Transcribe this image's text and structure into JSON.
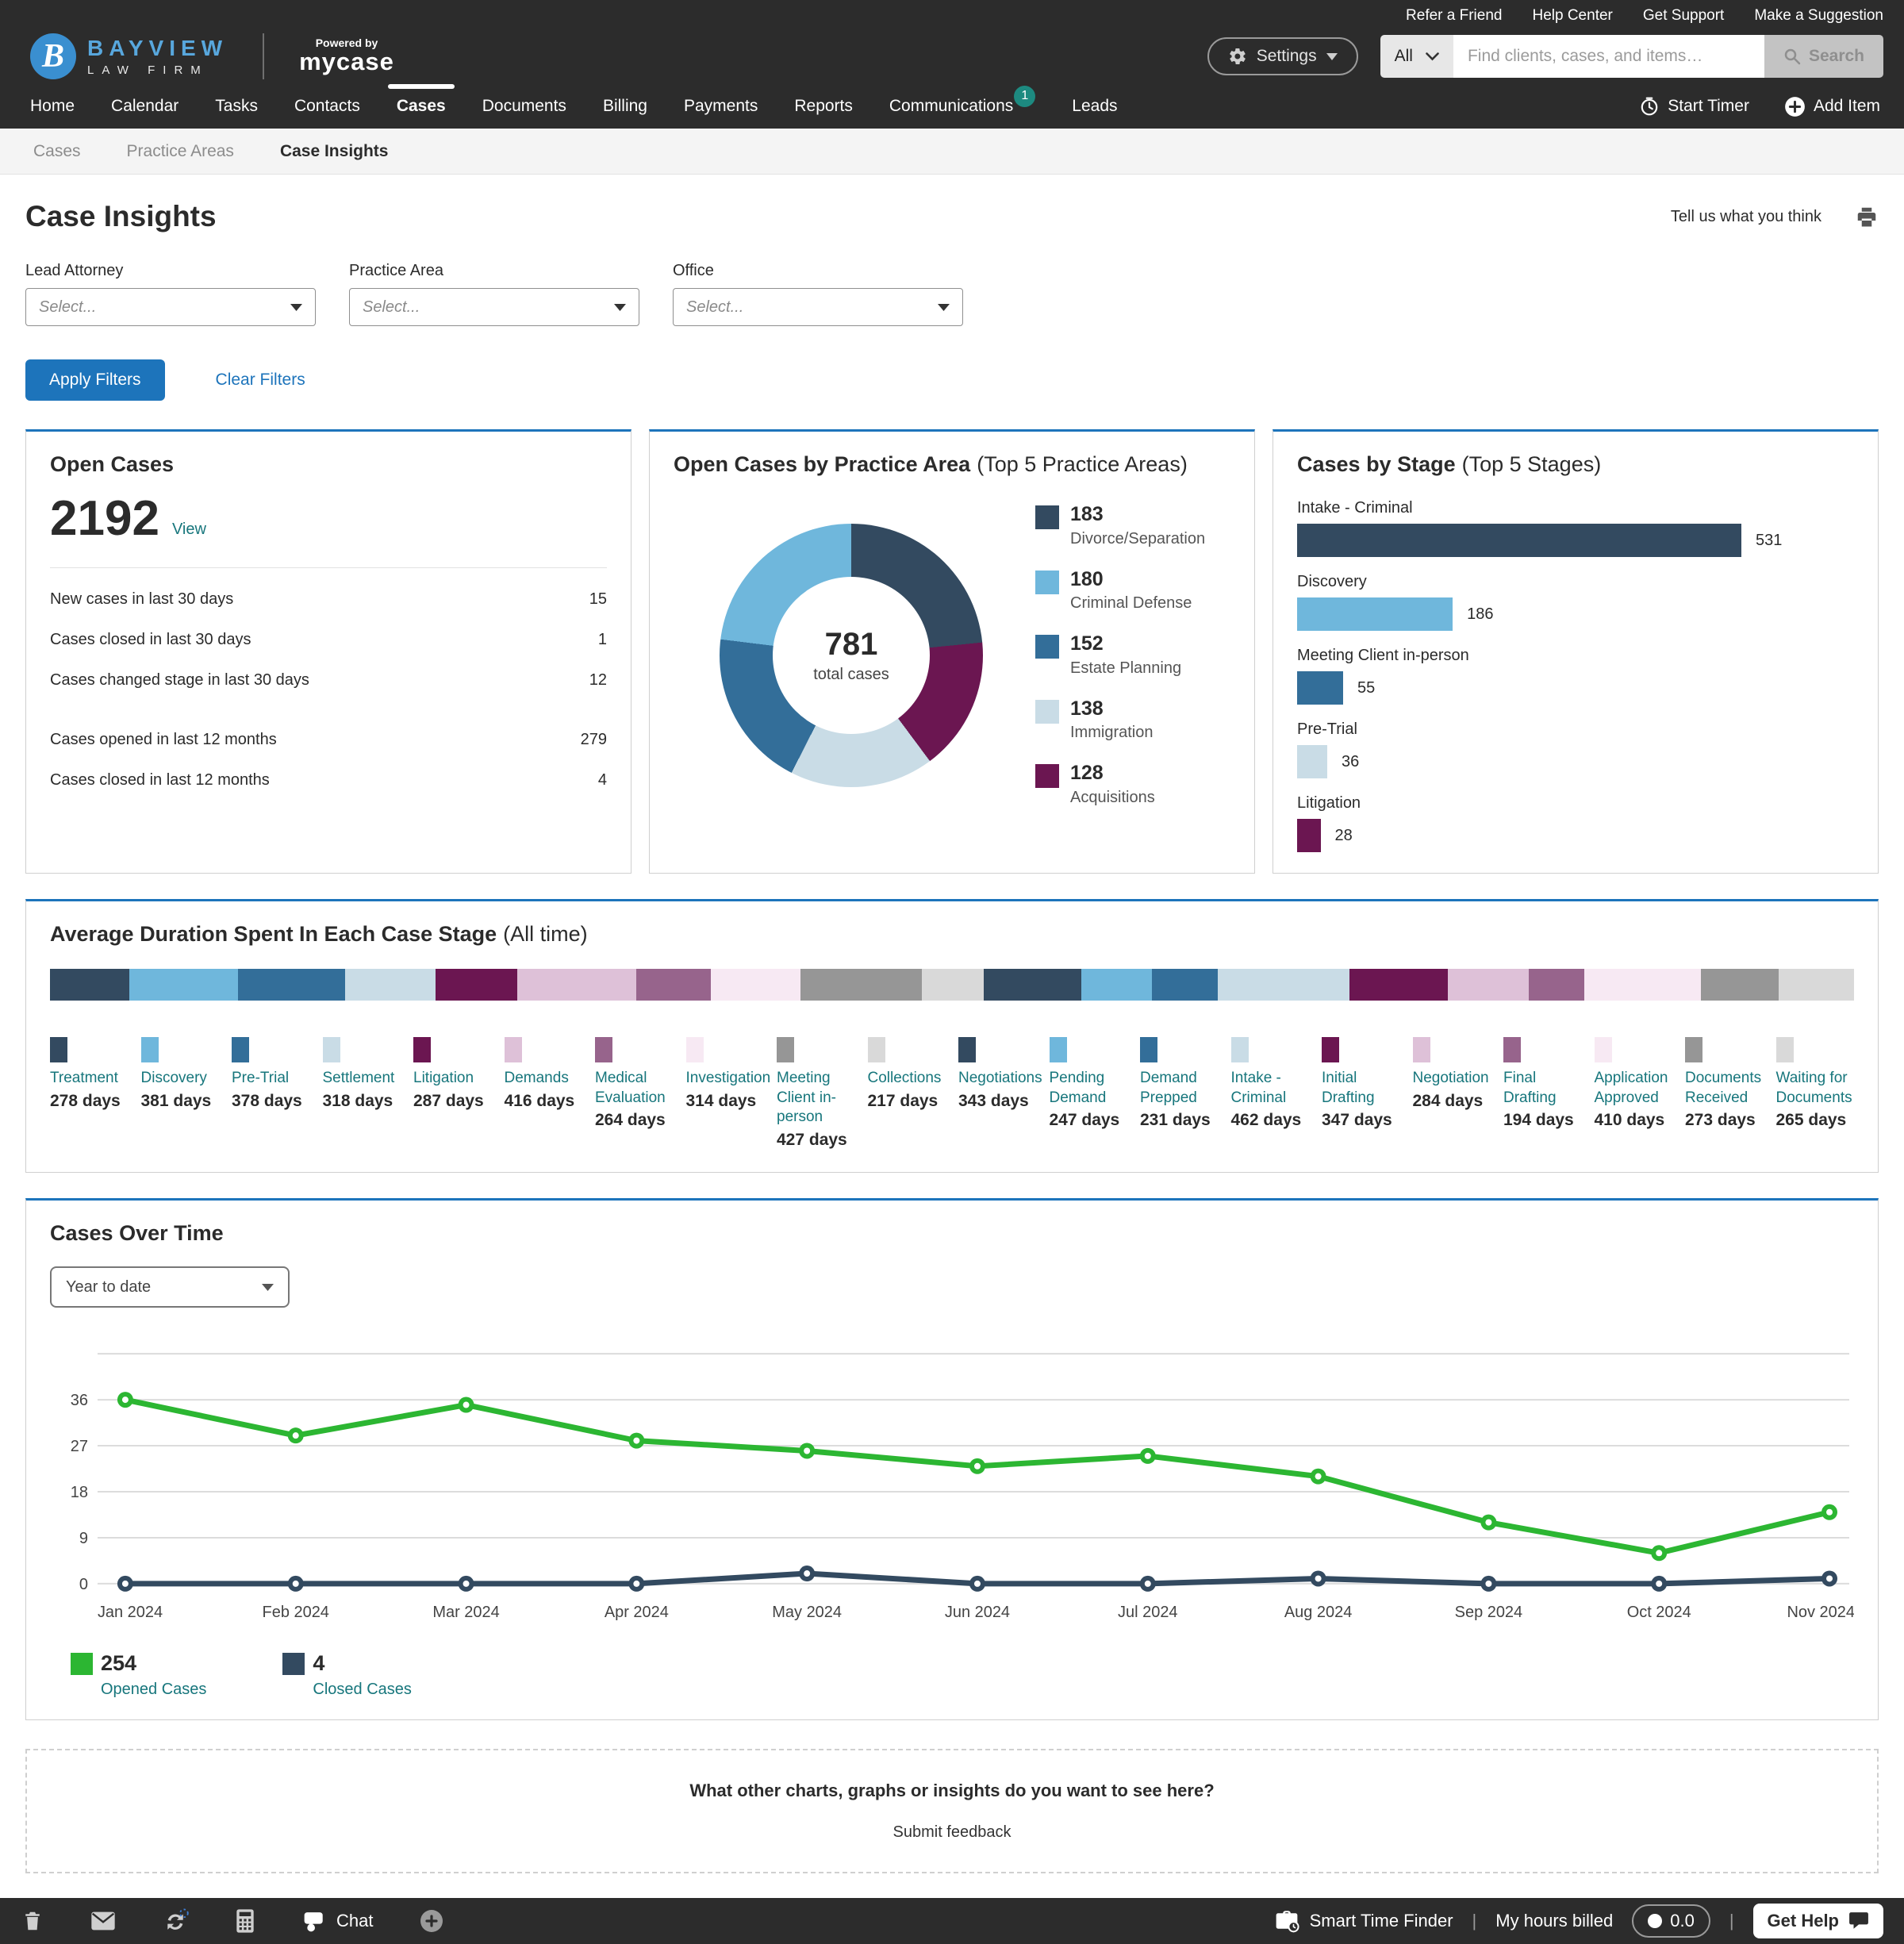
{
  "topbar": {
    "links": [
      "Refer a Friend",
      "Help Center",
      "Get Support",
      "Make a Suggestion"
    ]
  },
  "header": {
    "logo_initial": "B",
    "firm_line1": "BAYVIEW",
    "firm_line2": "LAW FIRM",
    "powered_by": "Powered by",
    "product": "mycase",
    "settings_label": "Settings",
    "search_scope": "All",
    "search_placeholder": "Find clients, cases, and items…",
    "search_button": "Search"
  },
  "nav": {
    "items": [
      "Home",
      "Calendar",
      "Tasks",
      "Contacts",
      "Cases",
      "Documents",
      "Billing",
      "Payments",
      "Reports",
      "Communications",
      "Leads"
    ],
    "active": "Cases",
    "badge_item": "Communications",
    "badge_count": "1",
    "start_timer": "Start Timer",
    "add_item": "Add Item"
  },
  "subnav": {
    "items": [
      "Cases",
      "Practice Areas",
      "Case Insights"
    ],
    "active": "Case Insights"
  },
  "page": {
    "title": "Case Insights",
    "feedback_link": "Tell us what you think"
  },
  "filters": {
    "fields": [
      {
        "label": "Lead Attorney",
        "value": "Select..."
      },
      {
        "label": "Practice Area",
        "value": "Select..."
      },
      {
        "label": "Office",
        "value": "Select..."
      }
    ],
    "apply": "Apply Filters",
    "clear": "Clear Filters"
  },
  "open_cases": {
    "title": "Open Cases",
    "count": "2192",
    "view_label": "View",
    "group_break_index": 3,
    "stats": [
      {
        "label": "New cases in last 30 days",
        "value": "15"
      },
      {
        "label": "Cases closed in last 30 days",
        "value": "1"
      },
      {
        "label": "Cases changed stage in last 30 days",
        "value": "12"
      },
      {
        "label": "Cases opened in last 12 months",
        "value": "279"
      },
      {
        "label": "Cases closed in last 12 months",
        "value": "4"
      }
    ]
  },
  "chart_data": [
    {
      "id": "open_cases_by_practice_area",
      "type": "pie",
      "title": "Open Cases by Practice Area",
      "subtitle": "(Top 5 Practice Areas)",
      "center_total": "781",
      "center_label": "total cases",
      "categories": [
        "Divorce/Separation",
        "Criminal Defense",
        "Estate Planning",
        "Immigration",
        "Acquisitions"
      ],
      "values": [
        183,
        180,
        152,
        138,
        128
      ],
      "colors": [
        "#334a60",
        "#6fb7dc",
        "#336e99",
        "#c9dce6",
        "#6b1651"
      ],
      "clockwise_draw_order": [
        0,
        4,
        3,
        2,
        1
      ],
      "legend_position": "right"
    },
    {
      "id": "cases_by_stage",
      "type": "bar",
      "orientation": "horizontal",
      "title": "Cases by Stage",
      "subtitle": "(Top 5 Stages)",
      "categories": [
        "Intake - Criminal",
        "Discovery",
        "Meeting Client in-person",
        "Pre-Trial",
        "Litigation"
      ],
      "values": [
        531,
        186,
        55,
        36,
        28
      ],
      "colors": [
        "#334a60",
        "#6fb7dc",
        "#336e99",
        "#c9dce6",
        "#6b1651"
      ],
      "xlim": [
        0,
        531
      ]
    },
    {
      "id": "avg_stage_duration",
      "type": "stacked-bar",
      "title": "Average Duration Spent In Each Case Stage",
      "subtitle": "(All time)",
      "unit": "days",
      "stages": [
        {
          "name": "Treatment",
          "days": 278,
          "color": "#334a60"
        },
        {
          "name": "Discovery",
          "days": 381,
          "color": "#6fb7dc"
        },
        {
          "name": "Pre-Trial",
          "days": 378,
          "color": "#336e99"
        },
        {
          "name": "Settlement",
          "days": 318,
          "color": "#c9dce6"
        },
        {
          "name": "Litigation",
          "days": 287,
          "color": "#6b1651"
        },
        {
          "name": "Demands",
          "days": 416,
          "color": "#dec1d8"
        },
        {
          "name": "Medical Evaluation",
          "days": 264,
          "color": "#97648c"
        },
        {
          "name": "Investigation",
          "days": 314,
          "color": "#f7e9f3"
        },
        {
          "name": "Meeting Client in-person",
          "days": 427,
          "color": "#969696"
        },
        {
          "name": "Collections",
          "days": 217,
          "color": "#d9d9d9"
        },
        {
          "name": "Negotiations",
          "days": 343,
          "color": "#334a60"
        },
        {
          "name": "Pending Demand",
          "days": 247,
          "color": "#6fb7dc"
        },
        {
          "name": "Demand Prepped",
          "days": 231,
          "color": "#336e99"
        },
        {
          "name": "Intake - Criminal",
          "days": 462,
          "color": "#c9dce6"
        },
        {
          "name": "Initial Drafting",
          "days": 347,
          "color": "#6b1651"
        },
        {
          "name": "Negotiation",
          "days": 284,
          "color": "#dec1d8"
        },
        {
          "name": "Final Drafting",
          "days": 194,
          "color": "#97648c"
        },
        {
          "name": "Application Approved",
          "days": 410,
          "color": "#f7e9f3"
        },
        {
          "name": "Documents Received",
          "days": 273,
          "color": "#969696"
        },
        {
          "name": "Waiting for Documents",
          "days": 265,
          "color": "#d9d9d9"
        }
      ]
    },
    {
      "id": "cases_over_time",
      "type": "line",
      "title": "Cases Over Time",
      "range_selector": "Year to date",
      "x": [
        "Jan 2024",
        "Feb 2024",
        "Mar 2024",
        "Apr 2024",
        "May 2024",
        "Jun 2024",
        "Jul 2024",
        "Aug 2024",
        "Sep 2024",
        "Oct 2024",
        "Nov 2024"
      ],
      "yticks": [
        0,
        9,
        18,
        27,
        36
      ],
      "grid": true,
      "legend_position": "bottom-left",
      "series": [
        {
          "name": "Opened Cases",
          "total": "254",
          "color": "#2cb632",
          "values": [
            36,
            29,
            35,
            28,
            26,
            23,
            25,
            21,
            12,
            6,
            14
          ]
        },
        {
          "name": "Closed Cases",
          "total": "4",
          "color": "#334a60",
          "values": [
            0,
            0,
            0,
            0,
            2,
            0,
            0,
            1,
            0,
            0,
            1
          ]
        }
      ]
    }
  ],
  "feedback": {
    "question": "What other charts, graphs or insights do you want to see here?",
    "submit_label": "Submit feedback"
  },
  "footer": {
    "chat_label": "Chat",
    "smart_time_finder": "Smart Time Finder",
    "my_hours_billed": "My hours billed",
    "hours_value": "0.0",
    "get_help": "Get Help"
  }
}
